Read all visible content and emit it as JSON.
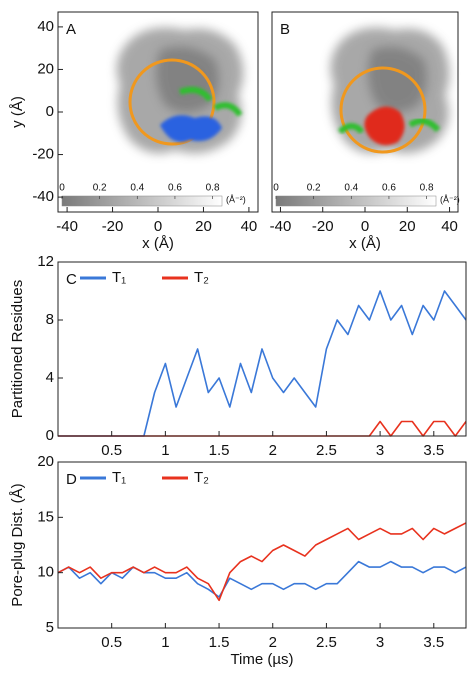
{
  "chart_data": [
    {
      "type": "map",
      "panel": "A",
      "xlim": [
        -44,
        44
      ],
      "ylim": [
        -47,
        47
      ],
      "xticks": [
        -40,
        -20,
        0,
        20,
        40
      ],
      "yticks": [
        -40,
        -20,
        0,
        20,
        40
      ],
      "xlabel": "x (Å)",
      "ylabel": "y (Å)",
      "colorbar": {
        "lim": [
          0,
          0.85
        ],
        "ticks": [
          0,
          0.2,
          0.4,
          0.6,
          0.8
        ],
        "label": "(Å⁻²)"
      }
    },
    {
      "type": "map",
      "panel": "B",
      "xlim": [
        -44,
        44
      ],
      "ylim": [
        -47,
        47
      ],
      "xticks": [
        -40,
        -20,
        0,
        20,
        40
      ],
      "xlabel": "x (Å)",
      "colorbar": {
        "lim": [
          0,
          0.85
        ],
        "ticks": [
          0,
          0.2,
          0.4,
          0.6,
          0.8
        ],
        "label": "(Å⁻²)"
      }
    },
    {
      "type": "line",
      "panel": "C",
      "ylabel": "Partitioned Residues",
      "xlim": [
        0,
        3.8
      ],
      "ylim": [
        0,
        12
      ],
      "xticks": [
        0.5,
        1,
        1.5,
        2,
        2.5,
        3,
        3.5
      ],
      "yticks": [
        0,
        4,
        8,
        12
      ],
      "legend": "upper left",
      "x": [
        0,
        0.1,
        0.2,
        0.3,
        0.4,
        0.5,
        0.6,
        0.7,
        0.8,
        0.9,
        1.0,
        1.1,
        1.2,
        1.3,
        1.4,
        1.5,
        1.6,
        1.7,
        1.8,
        1.9,
        2.0,
        2.1,
        2.2,
        2.3,
        2.4,
        2.5,
        2.6,
        2.7,
        2.8,
        2.9,
        3.0,
        3.1,
        3.2,
        3.3,
        3.4,
        3.5,
        3.6,
        3.7,
        3.8
      ],
      "series": [
        {
          "name": "T₁",
          "color": "#3a78d8",
          "values": [
            0,
            0,
            0,
            0,
            0,
            0,
            0,
            0,
            0,
            3,
            5,
            2,
            4,
            6,
            3,
            4,
            2,
            5,
            3,
            6,
            4,
            3,
            4,
            3,
            2,
            6,
            8,
            7,
            9,
            8,
            10,
            8,
            9,
            7,
            9,
            8,
            10,
            9,
            8
          ]
        },
        {
          "name": "T₂",
          "color": "#e8321e",
          "values": [
            0,
            0,
            0,
            0,
            0,
            0,
            0,
            0,
            0,
            0,
            0,
            0,
            0,
            0,
            0,
            0,
            0,
            0,
            0,
            0,
            0,
            0,
            0,
            0,
            0,
            0,
            0,
            0,
            0,
            0,
            1,
            0,
            1,
            1,
            0,
            1,
            1,
            0,
            1
          ]
        }
      ]
    },
    {
      "type": "line",
      "panel": "D",
      "ylabel": "Pore-plug Dist. (Å)",
      "xlabel": "Time (µs)",
      "xlim": [
        0,
        3.8
      ],
      "ylim": [
        5,
        20
      ],
      "xticks": [
        0.5,
        1,
        1.5,
        2,
        2.5,
        3,
        3.5
      ],
      "yticks": [
        5,
        10,
        15,
        20
      ],
      "legend": "upper left",
      "x": [
        0,
        0.1,
        0.2,
        0.3,
        0.4,
        0.5,
        0.6,
        0.7,
        0.8,
        0.9,
        1.0,
        1.1,
        1.2,
        1.3,
        1.4,
        1.5,
        1.6,
        1.7,
        1.8,
        1.9,
        2.0,
        2.1,
        2.2,
        2.3,
        2.4,
        2.5,
        2.6,
        2.7,
        2.8,
        2.9,
        3.0,
        3.1,
        3.2,
        3.3,
        3.4,
        3.5,
        3.6,
        3.7,
        3.8
      ],
      "series": [
        {
          "name": "T₁",
          "color": "#3a78d8",
          "values": [
            10,
            10.5,
            9.5,
            10,
            9,
            10,
            9.5,
            10.5,
            10,
            10,
            9.5,
            9.5,
            10,
            9,
            8.5,
            7.8,
            9.5,
            9,
            8.5,
            9,
            9,
            8.5,
            9,
            9,
            8.5,
            9,
            9,
            10,
            11,
            10.5,
            10.5,
            11,
            10.5,
            10.5,
            10,
            10.5,
            10.5,
            10,
            10.5
          ]
        },
        {
          "name": "T₂",
          "color": "#e8321e",
          "values": [
            10,
            10.5,
            10,
            10.5,
            9.5,
            10,
            10,
            10.5,
            10,
            10.5,
            10,
            10,
            10.5,
            9.5,
            9,
            7.5,
            10,
            11,
            11.5,
            11,
            12,
            12.5,
            12,
            11.5,
            12.5,
            13,
            13.5,
            14,
            13,
            13.5,
            14,
            13.5,
            13.5,
            14,
            13,
            14,
            13.5,
            14,
            14.5
          ]
        }
      ]
    }
  ]
}
